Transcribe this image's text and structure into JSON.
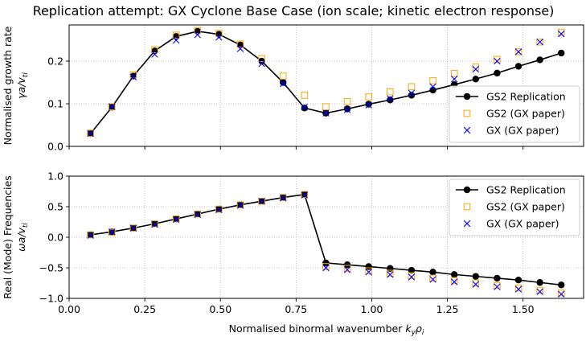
{
  "title": "Replication attempt: GX Cyclone Base Case (ion scale; kinetic electron response)",
  "xlabel": "Normalised binormal wavenumber k_yρ_i",
  "colors": {
    "replication": "#000000",
    "gs2_paper": "#ffa500",
    "gx_paper": "#0000ff",
    "grid": "#b0b0b0"
  },
  "chart_data": [
    {
      "type": "line",
      "title": "",
      "ylabel": "Normalised growth rate",
      "ylabel_units": "γa/v_ti",
      "xlim": [
        0.0,
        1.7
      ],
      "ylim": [
        0.0,
        0.285
      ],
      "xticks": [
        0.0,
        0.25,
        0.5,
        0.75,
        1.0,
        1.25,
        1.5
      ],
      "xtick_labels": [],
      "yticks": [
        0.0,
        0.1,
        0.2
      ],
      "ytick_labels": [
        "0.0",
        "0.1",
        "0.2"
      ],
      "grid": true,
      "legend_position": "lower-right",
      "series": [
        {
          "name": "GS2 Replication",
          "style": "line-circle",
          "x": [
            0.0707,
            0.1414,
            0.2121,
            0.2828,
            0.3536,
            0.4243,
            0.495,
            0.5657,
            0.6364,
            0.7071,
            0.7778,
            0.8485,
            0.9192,
            0.9899,
            1.0607,
            1.1314,
            1.2021,
            1.2728,
            1.3435,
            1.4142,
            1.4849,
            1.5556,
            1.6263
          ],
          "y": [
            0.03,
            0.092,
            0.165,
            0.224,
            0.258,
            0.27,
            0.263,
            0.238,
            0.2,
            0.15,
            0.09,
            0.078,
            0.088,
            0.099,
            0.109,
            0.12,
            0.132,
            0.145,
            0.158,
            0.172,
            0.188,
            0.203,
            0.219
          ]
        },
        {
          "name": "GS2 (GX paper)",
          "style": "open-square",
          "x": [
            0.0707,
            0.1414,
            0.2121,
            0.2828,
            0.3536,
            0.4243,
            0.495,
            0.5657,
            0.6364,
            0.7071,
            0.7778,
            0.8485,
            0.9192,
            0.9899,
            1.0607,
            1.1314,
            1.2021,
            1.2728,
            1.3435,
            1.4142,
            1.4849,
            1.5556,
            1.6263
          ],
          "y": [
            0.031,
            0.093,
            0.168,
            0.227,
            0.261,
            0.272,
            0.265,
            0.24,
            0.206,
            0.165,
            0.12,
            0.093,
            0.105,
            0.116,
            0.128,
            0.14,
            0.154,
            0.171,
            0.186,
            0.204,
            0.222,
            0.245,
            0.268
          ]
        },
        {
          "name": "GX (GX paper)",
          "style": "x",
          "x": [
            0.0707,
            0.1414,
            0.2121,
            0.2828,
            0.3536,
            0.4243,
            0.495,
            0.5657,
            0.6364,
            0.7071,
            0.7778,
            0.8485,
            0.9192,
            0.9899,
            1.0607,
            1.1314,
            1.2021,
            1.2728,
            1.3435,
            1.4142,
            1.4849,
            1.5556,
            1.6263
          ],
          "y": [
            0.03,
            0.093,
            0.163,
            0.216,
            0.249,
            0.262,
            0.256,
            0.229,
            0.194,
            0.147,
            0.092,
            0.078,
            0.086,
            0.097,
            0.112,
            0.125,
            0.14,
            0.158,
            0.181,
            0.2,
            0.222,
            0.245,
            0.264
          ]
        }
      ]
    },
    {
      "type": "line",
      "title": "",
      "ylabel": "Real (Mode) Frequencies",
      "ylabel_units": "ωa/v_ti",
      "xlim": [
        0.0,
        1.7
      ],
      "ylim": [
        -1.0,
        1.0
      ],
      "xticks": [
        0.0,
        0.25,
        0.5,
        0.75,
        1.0,
        1.25,
        1.5
      ],
      "xtick_labels": [
        "0.00",
        "0.25",
        "0.50",
        "0.75",
        "1.00",
        "1.25",
        "1.50"
      ],
      "yticks": [
        -1.0,
        -0.5,
        0.0,
        0.5,
        1.0
      ],
      "ytick_labels": [
        "−1.0",
        "−0.5",
        "0.0",
        "0.5",
        "1.0"
      ],
      "grid": true,
      "legend_position": "upper-right",
      "series": [
        {
          "name": "GS2 Replication",
          "style": "line-circle",
          "x": [
            0.0707,
            0.1414,
            0.2121,
            0.2828,
            0.3536,
            0.4243,
            0.495,
            0.5657,
            0.6364,
            0.7071,
            0.7778,
            0.8485,
            0.9192,
            0.9899,
            1.0607,
            1.1314,
            1.2021,
            1.2728,
            1.3435,
            1.4142,
            1.4849,
            1.5556,
            1.6263
          ],
          "y": [
            0.04,
            0.09,
            0.15,
            0.22,
            0.3,
            0.38,
            0.46,
            0.53,
            0.59,
            0.65,
            0.7,
            -0.42,
            -0.45,
            -0.48,
            -0.51,
            -0.54,
            -0.57,
            -0.61,
            -0.64,
            -0.67,
            -0.7,
            -0.74,
            -0.78
          ]
        },
        {
          "name": "GS2 (GX paper)",
          "style": "open-square",
          "x": [
            0.0707,
            0.1414,
            0.2121,
            0.2828,
            0.3536,
            0.4243,
            0.495,
            0.5657,
            0.6364,
            0.7071,
            0.7778,
            0.8485,
            0.9192,
            0.9899,
            1.0607,
            1.1314,
            1.2021,
            1.2728,
            1.3435,
            1.4142,
            1.4849,
            1.5556,
            1.6263
          ],
          "y": [
            0.04,
            0.08,
            0.15,
            0.22,
            0.3,
            0.38,
            0.46,
            0.53,
            0.59,
            0.65,
            0.7,
            -0.48,
            -0.51,
            -0.55,
            -0.59,
            -0.63,
            -0.67,
            -0.71,
            -0.75,
            -0.79,
            -0.83,
            -0.87,
            -0.91
          ]
        },
        {
          "name": "GX (GX paper)",
          "style": "x",
          "x": [
            0.0707,
            0.1414,
            0.2121,
            0.2828,
            0.3536,
            0.4243,
            0.495,
            0.5657,
            0.6364,
            0.7071,
            0.7778,
            0.8485,
            0.9192,
            0.9899,
            1.0607,
            1.1314,
            1.2021,
            1.2728,
            1.3435,
            1.4142,
            1.4849,
            1.5556,
            1.6263
          ],
          "y": [
            0.03,
            0.09,
            0.15,
            0.21,
            0.29,
            0.37,
            0.45,
            0.52,
            0.59,
            0.64,
            0.69,
            -0.5,
            -0.53,
            -0.57,
            -0.61,
            -0.65,
            -0.69,
            -0.73,
            -0.77,
            -0.81,
            -0.85,
            -0.89,
            -0.93
          ]
        }
      ]
    }
  ]
}
